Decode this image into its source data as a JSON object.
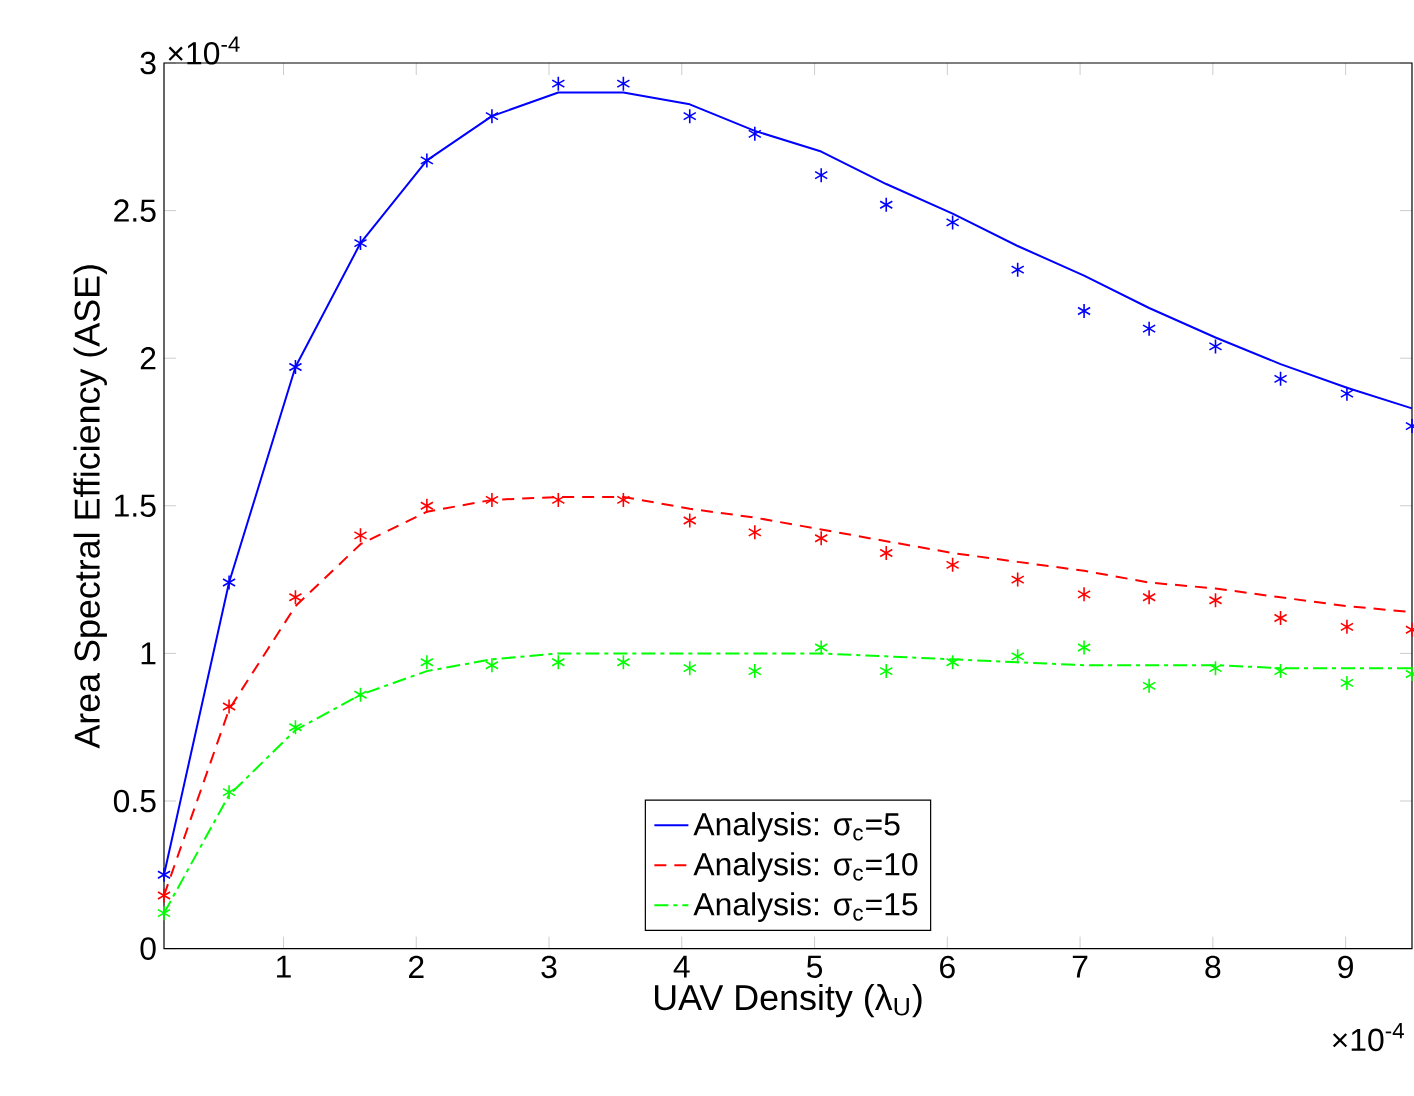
{
  "chart_data": {
    "type": "line",
    "xlabel": "UAV Density (λ$_{U}$)",
    "ylabel": "Area Spectral Efficiency (ASE)",
    "annotations": [
      "×10$^{-4}$",
      "×10$^{-4}$"
    ],
    "x": [
      0.1,
      0.59,
      1.09,
      1.58,
      2.08,
      2.57,
      3.07,
      3.56,
      4.06,
      4.55,
      5.05,
      5.54,
      6.04,
      6.53,
      7.03,
      7.52,
      8.02,
      8.51,
      9.01,
      9.5
    ],
    "xlim": [
      0.1,
      9.5
    ],
    "xticks": [
      1,
      2,
      3,
      4,
      5,
      6,
      7,
      8,
      9
    ],
    "ylim": [
      0,
      3
    ],
    "yticks": [
      0,
      0.5,
      1,
      1.5,
      2,
      2.5,
      3
    ],
    "legend": "bottom",
    "series": [
      {
        "name": "Analysis: σ$_{c}$=5",
        "color": "#0000ff",
        "line_style": "solid",
        "marker": "none",
        "values": [
          0.25,
          1.24,
          1.97,
          2.39,
          2.67,
          2.82,
          2.9,
          2.9,
          2.86,
          2.77,
          2.7,
          2.59,
          2.49,
          2.38,
          2.28,
          2.17,
          2.07,
          1.98,
          1.9,
          1.83
        ]
      },
      {
        "name": "Analysis: σ$_{c}$=10",
        "color": "#ff0000",
        "line_style": "dashed",
        "marker": "none",
        "values": [
          0.18,
          0.81,
          1.16,
          1.37,
          1.48,
          1.52,
          1.53,
          1.53,
          1.49,
          1.46,
          1.42,
          1.38,
          1.34,
          1.31,
          1.28,
          1.24,
          1.22,
          1.19,
          1.16,
          1.14
        ]
      },
      {
        "name": "Analysis: σ$_{c}$=15",
        "color": "#00ff00",
        "line_style": "dashdot",
        "marker": "none",
        "values": [
          0.12,
          0.52,
          0.74,
          0.86,
          0.94,
          0.98,
          1.0,
          1.0,
          1.0,
          1.0,
          1.0,
          0.99,
          0.98,
          0.97,
          0.96,
          0.96,
          0.96,
          0.95,
          0.95,
          0.95
        ]
      },
      {
        "type": "scatter",
        "color": "#0000ff",
        "marker": "cross",
        "values": [
          0.25,
          1.24,
          1.97,
          2.39,
          2.67,
          2.82,
          2.93,
          2.93,
          2.82,
          2.76,
          2.62,
          2.52,
          2.46,
          2.3,
          2.16,
          2.1,
          2.04,
          1.93,
          1.88,
          1.77
        ]
      },
      {
        "type": "scatter",
        "color": "#ff0000",
        "marker": "cross",
        "values": [
          0.18,
          0.82,
          1.19,
          1.4,
          1.5,
          1.52,
          1.52,
          1.52,
          1.45,
          1.41,
          1.39,
          1.34,
          1.3,
          1.25,
          1.2,
          1.19,
          1.18,
          1.12,
          1.09,
          1.08
        ]
      },
      {
        "type": "scatter",
        "color": "#00ff00",
        "marker": "cross",
        "values": [
          0.12,
          0.53,
          0.75,
          0.86,
          0.97,
          0.96,
          0.97,
          0.97,
          0.95,
          0.94,
          1.02,
          0.94,
          0.97,
          0.99,
          1.02,
          0.89,
          0.95,
          0.94,
          0.9,
          0.93
        ]
      }
    ]
  }
}
